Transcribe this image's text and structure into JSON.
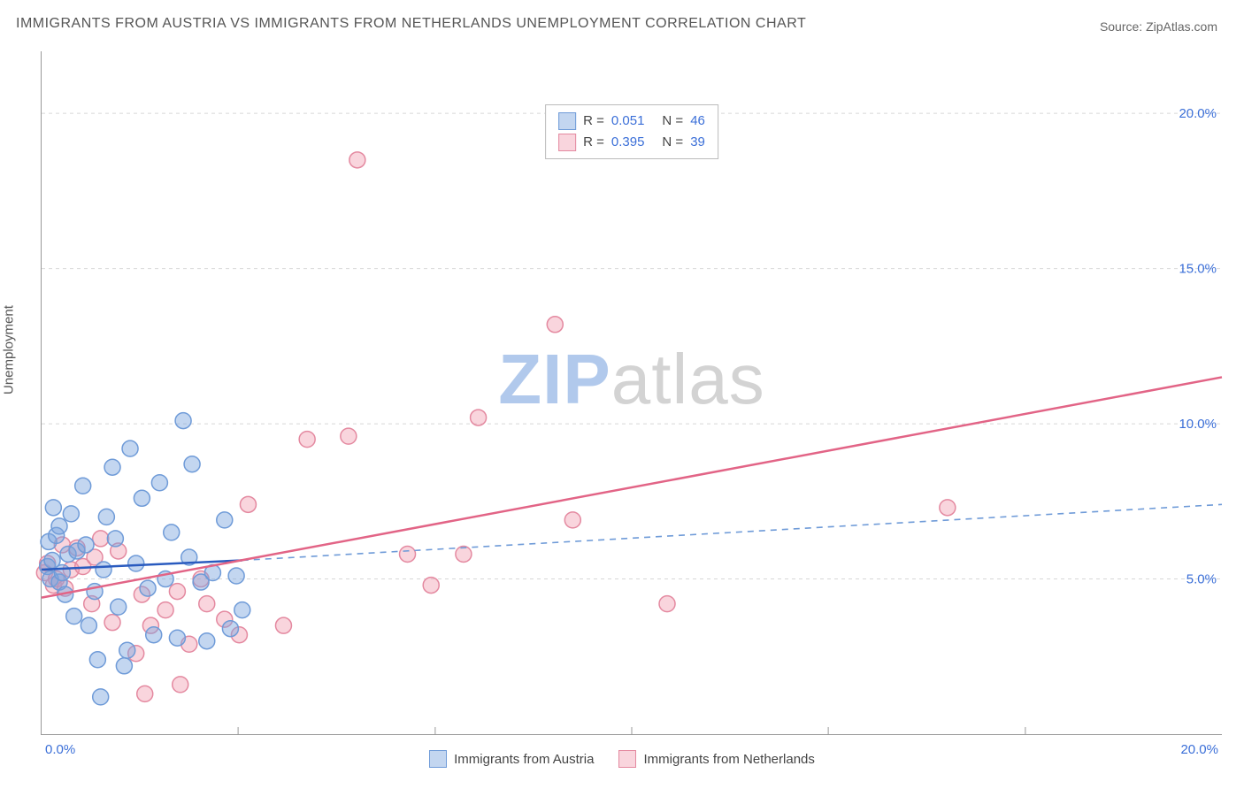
{
  "title": "IMMIGRANTS FROM AUSTRIA VS IMMIGRANTS FROM NETHERLANDS UNEMPLOYMENT CORRELATION CHART",
  "source": "Source: ZipAtlas.com",
  "y_axis_label": "Unemployment",
  "watermark": {
    "part1": "ZIP",
    "part2": "atlas",
    "color1": "#a9c4ea",
    "color2": "#cfcfcf"
  },
  "chart": {
    "type": "scatter",
    "xlim": [
      0,
      20
    ],
    "ylim": [
      0,
      22
    ],
    "x_ticks": [
      0,
      20
    ],
    "x_tick_labels": [
      "0.0%",
      "20.0%"
    ],
    "y_ticks": [
      5,
      10,
      15,
      20
    ],
    "y_tick_labels": [
      "5.0%",
      "10.0%",
      "15.0%",
      "20.0%"
    ],
    "y_grid_dashed": [
      5,
      10,
      15,
      20
    ],
    "x_minor_ticks": [
      3.33,
      6.67,
      10,
      13.33,
      16.67
    ],
    "grid_color": "#d7d7d7",
    "axis_color": "#999999",
    "tick_label_color": "#3b6fd8",
    "background_color": "#ffffff",
    "marker_radius": 9,
    "marker_stroke_width": 1.5,
    "series": [
      {
        "id": "austria",
        "label": "Immigrants from Austria",
        "fill_color": "rgba(121,163,222,0.45)",
        "stroke_color": "#6f9bd8",
        "r": "0.051",
        "n": "46",
        "trend_solid": {
          "x1": 0,
          "y1": 5.3,
          "x2": 3.4,
          "y2": 5.6,
          "color": "#2a5bbf",
          "width": 2.5,
          "dash": ""
        },
        "trend_dashed": {
          "x1": 3.4,
          "y1": 5.6,
          "x2": 20,
          "y2": 7.4,
          "color": "#6f9bd8",
          "width": 1.6,
          "dash": "7 6"
        },
        "points": [
          [
            0.1,
            5.4
          ],
          [
            0.12,
            6.2
          ],
          [
            0.15,
            5.0
          ],
          [
            0.18,
            5.6
          ],
          [
            0.2,
            7.3
          ],
          [
            0.25,
            6.4
          ],
          [
            0.3,
            4.9
          ],
          [
            0.3,
            6.7
          ],
          [
            0.35,
            5.2
          ],
          [
            0.4,
            4.5
          ],
          [
            0.45,
            5.8
          ],
          [
            0.5,
            7.1
          ],
          [
            0.55,
            3.8
          ],
          [
            0.6,
            5.9
          ],
          [
            0.7,
            8.0
          ],
          [
            0.75,
            6.1
          ],
          [
            0.8,
            3.5
          ],
          [
            0.9,
            4.6
          ],
          [
            0.95,
            2.4
          ],
          [
            1.0,
            1.2
          ],
          [
            1.05,
            5.3
          ],
          [
            1.1,
            7.0
          ],
          [
            1.2,
            8.6
          ],
          [
            1.25,
            6.3
          ],
          [
            1.3,
            4.1
          ],
          [
            1.4,
            2.2
          ],
          [
            1.45,
            2.7
          ],
          [
            1.5,
            9.2
          ],
          [
            1.6,
            5.5
          ],
          [
            1.7,
            7.6
          ],
          [
            1.8,
            4.7
          ],
          [
            1.9,
            3.2
          ],
          [
            2.0,
            8.1
          ],
          [
            2.1,
            5.0
          ],
          [
            2.2,
            6.5
          ],
          [
            2.3,
            3.1
          ],
          [
            2.4,
            10.1
          ],
          [
            2.5,
            5.7
          ],
          [
            2.55,
            8.7
          ],
          [
            2.7,
            4.9
          ],
          [
            2.8,
            3.0
          ],
          [
            2.9,
            5.2
          ],
          [
            3.1,
            6.9
          ],
          [
            3.2,
            3.4
          ],
          [
            3.3,
            5.1
          ],
          [
            3.4,
            4.0
          ]
        ]
      },
      {
        "id": "netherlands",
        "label": "Immigrants from Netherlands",
        "fill_color": "rgba(240,150,170,0.40)",
        "stroke_color": "#e489a0",
        "r": "0.395",
        "n": "39",
        "trend_solid": {
          "x1": 0,
          "y1": 4.4,
          "x2": 20,
          "y2": 11.5,
          "color": "#e26486",
          "width": 2.5,
          "dash": ""
        },
        "trend_dashed": null,
        "points": [
          [
            0.05,
            5.2
          ],
          [
            0.1,
            5.5
          ],
          [
            0.2,
            4.8
          ],
          [
            0.25,
            5.0
          ],
          [
            0.35,
            6.1
          ],
          [
            0.4,
            4.7
          ],
          [
            0.5,
            5.3
          ],
          [
            0.6,
            6.0
          ],
          [
            0.7,
            5.4
          ],
          [
            0.85,
            4.2
          ],
          [
            0.9,
            5.7
          ],
          [
            1.0,
            6.3
          ],
          [
            1.2,
            3.6
          ],
          [
            1.3,
            5.9
          ],
          [
            1.6,
            2.6
          ],
          [
            1.7,
            4.5
          ],
          [
            1.75,
            1.3
          ],
          [
            1.85,
            3.5
          ],
          [
            2.1,
            4.0
          ],
          [
            2.3,
            4.6
          ],
          [
            2.35,
            1.6
          ],
          [
            2.5,
            2.9
          ],
          [
            2.7,
            5.0
          ],
          [
            2.8,
            4.2
          ],
          [
            3.1,
            3.7
          ],
          [
            3.35,
            3.2
          ],
          [
            3.5,
            7.4
          ],
          [
            4.1,
            3.5
          ],
          [
            4.5,
            9.5
          ],
          [
            5.2,
            9.6
          ],
          [
            5.35,
            18.5
          ],
          [
            6.2,
            5.8
          ],
          [
            6.6,
            4.8
          ],
          [
            7.15,
            5.8
          ],
          [
            7.4,
            10.2
          ],
          [
            8.7,
            13.2
          ],
          [
            9.0,
            6.9
          ],
          [
            10.6,
            4.2
          ],
          [
            15.35,
            7.3
          ]
        ]
      }
    ]
  },
  "legend_top_rlabel": "R =",
  "legend_top_nlabel": "N ="
}
